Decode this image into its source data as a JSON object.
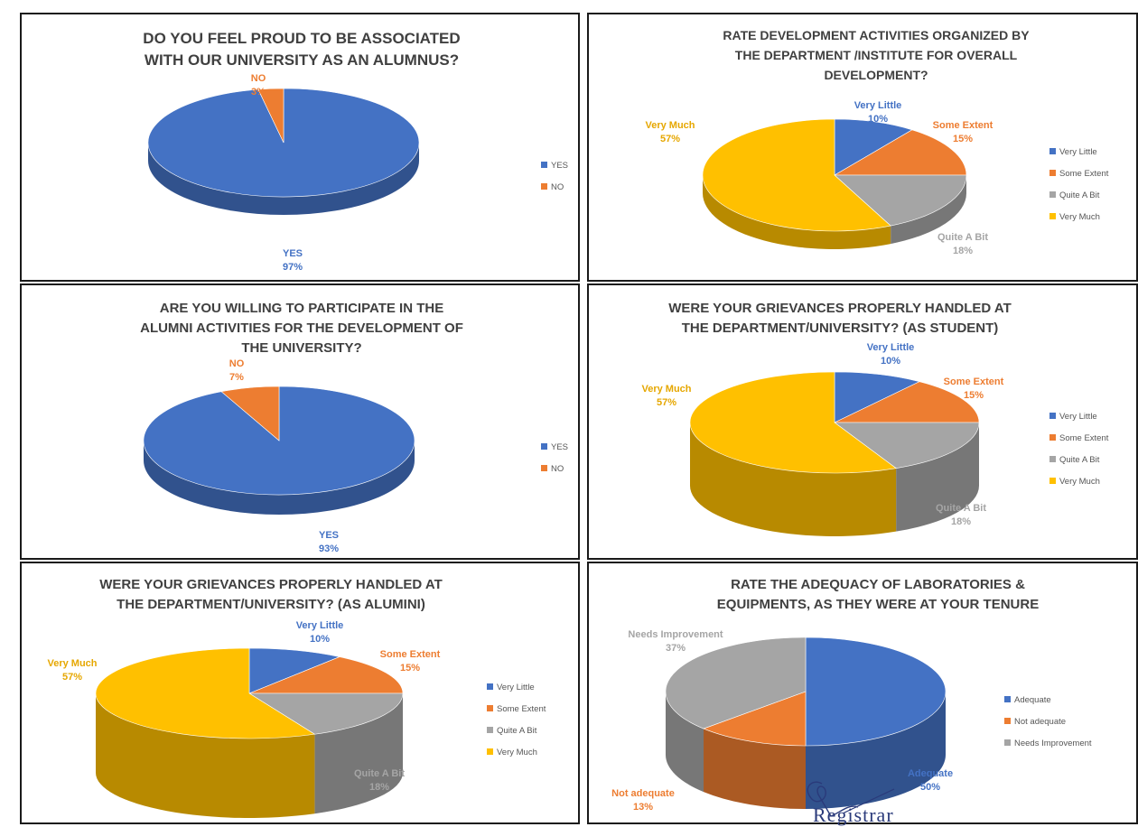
{
  "colors": {
    "blue": "#4472C4",
    "orange": "#ED7D31",
    "gray": "#A5A5A5",
    "gold": "#FFC000",
    "blue_text": "#4472C4",
    "orange_text": "#ED7D31",
    "gray_text": "#A5A5A5",
    "gold_text": "#E6A700"
  },
  "signature": {
    "label": "Registrar"
  },
  "chart_data": [
    {
      "type": "pie",
      "title": [
        "DO YOU FEEL PROUD TO BE ASSOCIATED",
        "WITH OUR UNIVERSITY AS AN ALUMNUS?"
      ],
      "slices": [
        {
          "label": "YES",
          "value": 97,
          "display": "97%"
        },
        {
          "label": "NO",
          "value": 3,
          "display": "3%"
        }
      ],
      "legend": [
        "YES",
        "NO"
      ],
      "legend_position": "right"
    },
    {
      "type": "pie",
      "title": [
        "RATE DEVELOPMENT ACTIVITIES ORGANIZED BY",
        "THE DEPARTMENT /INSTITUTE FOR OVERALL",
        "DEVELOPMENT?"
      ],
      "slices": [
        {
          "label": "Very Little",
          "value": 10,
          "display": "10%"
        },
        {
          "label": "Some Extent",
          "value": 15,
          "display": "15%"
        },
        {
          "label": "Quite A Bit",
          "value": 18,
          "display": "18%"
        },
        {
          "label": "Very Much",
          "value": 57,
          "display": "57%"
        }
      ],
      "legend": [
        "Very Little",
        "Some Extent",
        "Quite A Bit",
        "Very Much"
      ],
      "legend_position": "right"
    },
    {
      "type": "pie",
      "title": [
        "ARE YOU WILLING TO PARTICIPATE IN THE",
        "ALUMNI ACTIVITIES FOR THE DEVELOPMENT OF",
        "THE UNIVERSITY?"
      ],
      "slices": [
        {
          "label": "YES",
          "value": 93,
          "display": "93%"
        },
        {
          "label": "NO",
          "value": 7,
          "display": "7%"
        }
      ],
      "legend": [
        "YES",
        "NO"
      ],
      "legend_position": "right"
    },
    {
      "type": "pie",
      "title": [
        "WERE YOUR GRIEVANCES PROPERLY HANDLED AT",
        "THE DEPARTMENT/UNIVERSITY? (AS STUDENT)"
      ],
      "slices": [
        {
          "label": "Very Little",
          "value": 10,
          "display": "10%"
        },
        {
          "label": "Some Extent",
          "value": 15,
          "display": "15%"
        },
        {
          "label": "Quite A Bit",
          "value": 18,
          "display": "18%"
        },
        {
          "label": "Very Much",
          "value": 57,
          "display": "57%"
        }
      ],
      "legend": [
        "Very Little",
        "Some Extent",
        "Quite A Bit",
        "Very Much"
      ],
      "legend_position": "right"
    },
    {
      "type": "pie",
      "title": [
        "WERE YOUR GRIEVANCES PROPERLY HANDLED AT",
        "THE DEPARTMENT/UNIVERSITY? (AS ALUMINI)"
      ],
      "slices": [
        {
          "label": "Very Little",
          "value": 10,
          "display": "10%"
        },
        {
          "label": "Some Extent",
          "value": 15,
          "display": "15%"
        },
        {
          "label": "Quite A Bit",
          "value": 18,
          "display": "18%"
        },
        {
          "label": "Very Much",
          "value": 57,
          "display": "57%"
        }
      ],
      "legend": [
        "Very Little",
        "Some Extent",
        "Quite A Bit",
        "Very Much"
      ],
      "legend_position": "right"
    },
    {
      "type": "pie",
      "title": [
        "RATE THE ADEQUACY OF LABORATORIES &",
        "EQUIPMENTS, AS THEY WERE AT YOUR TENURE"
      ],
      "slices": [
        {
          "label": "Adequate",
          "value": 50,
          "display": "50%"
        },
        {
          "label": "Not adequate",
          "value": 13,
          "display": "13%"
        },
        {
          "label": "Needs Improvement",
          "value": 37,
          "display": "37%"
        }
      ],
      "legend": [
        "Adequate",
        "Not adequate",
        "Needs Improvement"
      ],
      "legend_position": "right"
    }
  ]
}
